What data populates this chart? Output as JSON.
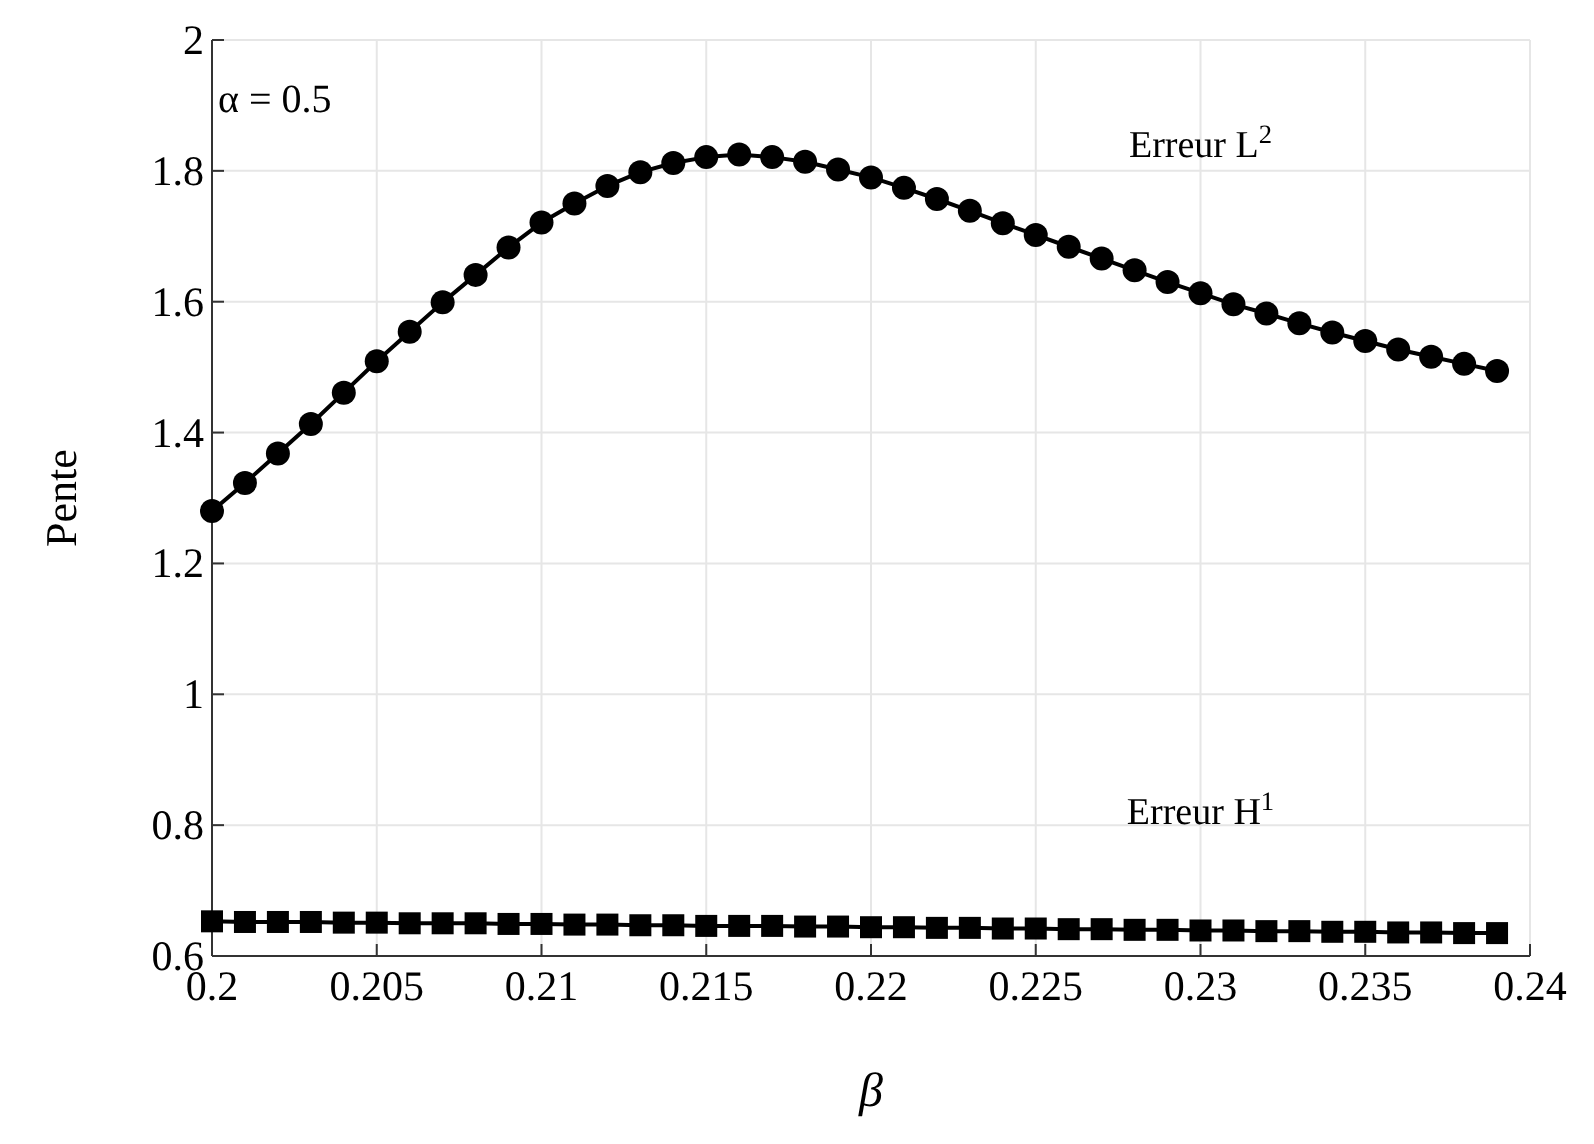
{
  "chart_data": {
    "type": "line",
    "xlabel": "β",
    "ylabel": "Pente",
    "annotations": [
      "α = 0.5"
    ],
    "x": [
      0.2,
      0.201,
      0.202,
      0.203,
      0.204,
      0.205,
      0.206,
      0.207,
      0.208,
      0.209,
      0.21,
      0.211,
      0.212,
      0.213,
      0.214,
      0.215,
      0.216,
      0.217,
      0.218,
      0.219,
      0.22,
      0.221,
      0.222,
      0.223,
      0.224,
      0.225,
      0.226,
      0.227,
      0.228,
      0.229,
      0.23,
      0.231,
      0.232,
      0.233,
      0.234,
      0.235,
      0.236,
      0.237,
      0.238,
      0.239
    ],
    "series": [
      {
        "name": "Erreur L$^{2}$",
        "color": "#000000",
        "marker": "circle",
        "values": [
          1.28,
          1.323,
          1.368,
          1.413,
          1.461,
          1.509,
          1.554,
          1.599,
          1.641,
          1.683,
          1.721,
          1.75,
          1.777,
          1.798,
          1.812,
          1.821,
          1.825,
          1.821,
          1.814,
          1.802,
          1.79,
          1.774,
          1.757,
          1.739,
          1.72,
          1.702,
          1.684,
          1.666,
          1.648,
          1.63,
          1.613,
          1.596,
          1.582,
          1.567,
          1.553,
          1.54,
          1.527,
          1.516,
          1.505,
          1.494
        ]
      },
      {
        "name": "Erreur H$^{1}$",
        "color": "#000000",
        "marker": "square",
        "values": [
          0.653,
          0.652,
          0.652,
          0.652,
          0.651,
          0.651,
          0.65,
          0.65,
          0.65,
          0.649,
          0.649,
          0.648,
          0.648,
          0.647,
          0.647,
          0.646,
          0.646,
          0.646,
          0.645,
          0.645,
          0.644,
          0.644,
          0.643,
          0.643,
          0.642,
          0.642,
          0.641,
          0.641,
          0.64,
          0.64,
          0.639,
          0.639,
          0.638,
          0.638,
          0.637,
          0.637,
          0.636,
          0.636,
          0.635,
          0.635
        ]
      }
    ],
    "xlim": [
      0.2,
      0.24
    ],
    "xticks": [
      0.2,
      0.205,
      0.21,
      0.215,
      0.22,
      0.225,
      0.23,
      0.235,
      0.24
    ],
    "ylim": [
      0.6,
      2
    ],
    "yticks": [
      0.6,
      0.8,
      1,
      1.2,
      1.4,
      1.6,
      1.8,
      2
    ],
    "grid": true,
    "line_style": "solid"
  }
}
